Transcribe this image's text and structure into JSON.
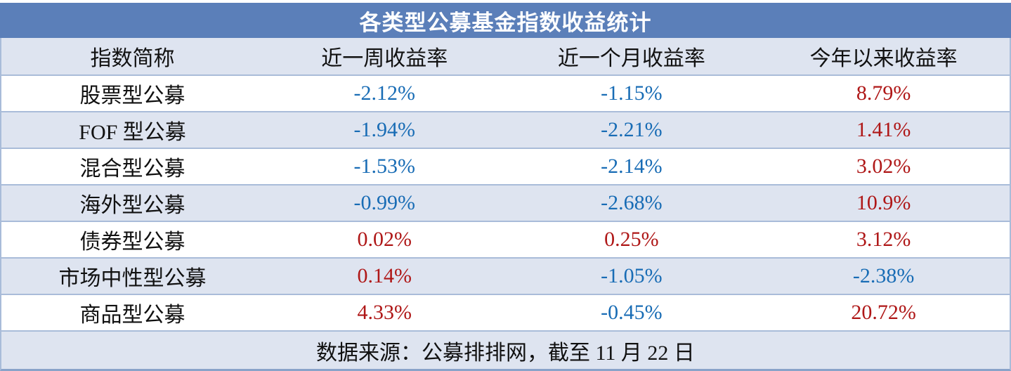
{
  "chart_data": {
    "type": "table",
    "title": "各类型公募基金指数收益统计",
    "columns": [
      "指数简称",
      "近一周收益率",
      "近一个月收益率",
      "今年以来收益率"
    ],
    "rows": [
      [
        "股票型公募",
        "-2.12%",
        "-1.15%",
        "8.79%"
      ],
      [
        "FOF 型公募",
        "-1.94%",
        "-2.21%",
        "1.41%"
      ],
      [
        "混合型公募",
        "-1.53%",
        "-2.14%",
        "3.02%"
      ],
      [
        "海外型公募",
        "-0.99%",
        "-2.68%",
        "10.9%"
      ],
      [
        "债券型公募",
        "0.02%",
        "0.25%",
        "3.12%"
      ],
      [
        "市场中性型公募",
        "0.14%",
        "-1.05%",
        "-2.38%"
      ],
      [
        "商品型公募",
        "4.33%",
        "-0.45%",
        "20.72%"
      ]
    ],
    "source_note": "数据来源：公募排排网，截至 11 月 22 日",
    "value_color_rule": "negative values blue, non-negative values red",
    "layout_hints": {
      "zebra_striping": true,
      "all_cells_centered": true
    }
  },
  "colors": {
    "title_bg": "#5B7FB9",
    "title_text": "#FFFFFF",
    "stripe_bg": "#DEE4F0",
    "row_border": "#A9BCD9",
    "bottom_border": "#89A3C9",
    "negative_text": "#186CB5",
    "positive_text": "#AF1717",
    "label_text": "#111111"
  }
}
